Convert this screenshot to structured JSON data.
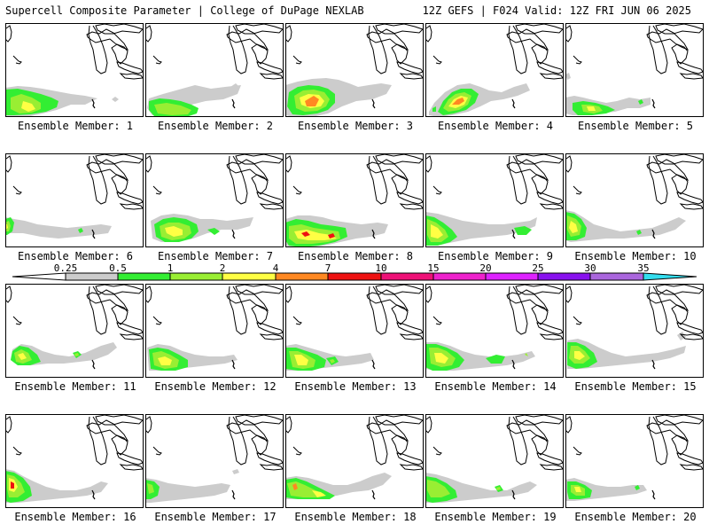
{
  "header": {
    "title": "Supercell Composite Parameter | College of DuPage NEXLAB",
    "run_info": "12Z GEFS | F024 Valid: 12Z FRI JUN 06 2025"
  },
  "colors": {
    "0.25": "#cccccc",
    "0.5": "#33ee33",
    "1": "#99ee33",
    "2": "#ffff44",
    "4": "#ff8822",
    "7": "#ee1111",
    "10": "#ee1177",
    "15": "#ee22cc",
    "20": "#dd22ff",
    "25": "#8811ee",
    "30": "#aa66dd",
    "35": "#33ddee"
  },
  "colorbar": {
    "ticks": [
      "0.25",
      "0.5",
      "1",
      "2",
      "4",
      "7",
      "10",
      "15",
      "20",
      "25",
      "30",
      "35"
    ]
  },
  "members": [
    {
      "label": "Ensemble Member: 1"
    },
    {
      "label": "Ensemble Member: 2"
    },
    {
      "label": "Ensemble Member: 3"
    },
    {
      "label": "Ensemble Member: 4"
    },
    {
      "label": "Ensemble Member: 5"
    },
    {
      "label": "Ensemble Member: 6"
    },
    {
      "label": "Ensemble Member: 7"
    },
    {
      "label": "Ensemble Member: 8"
    },
    {
      "label": "Ensemble Member: 9"
    },
    {
      "label": "Ensemble Member: 10"
    },
    {
      "label": "Ensemble Member: 11"
    },
    {
      "label": "Ensemble Member: 12"
    },
    {
      "label": "Ensemble Member: 13"
    },
    {
      "label": "Ensemble Member: 14"
    },
    {
      "label": "Ensemble Member: 15"
    },
    {
      "label": "Ensemble Member: 16"
    },
    {
      "label": "Ensemble Member: 17"
    },
    {
      "label": "Ensemble Member: 18"
    },
    {
      "label": "Ensemble Member: 19"
    },
    {
      "label": "Ensemble Member: 20"
    }
  ]
}
